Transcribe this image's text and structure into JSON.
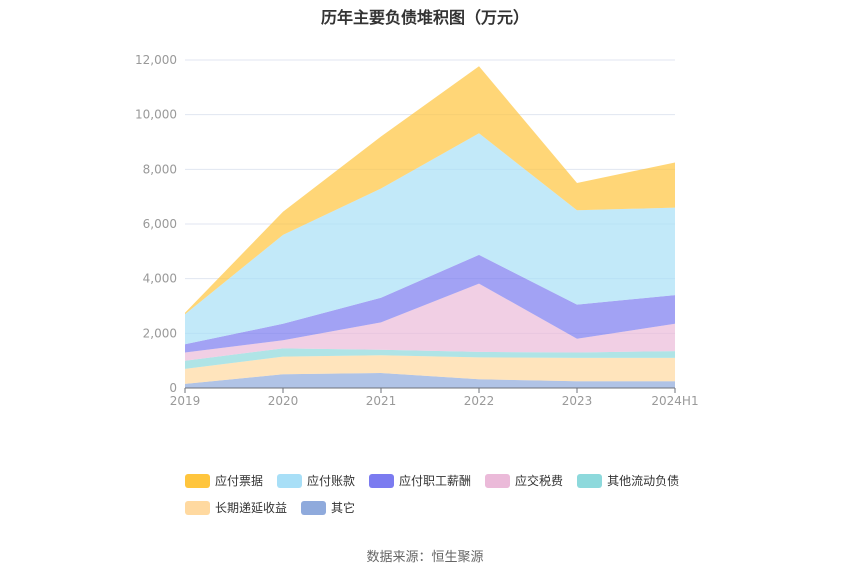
{
  "chart_data": {
    "type": "area",
    "stacked": true,
    "title": "历年主要负债堆积图（万元）",
    "categories": [
      "2019",
      "2020",
      "2021",
      "2022",
      "2023",
      "2024H1"
    ],
    "ylim": [
      0,
      12000
    ],
    "yticks": [
      "0",
      "2,000",
      "4,000",
      "6,000",
      "8,000",
      "10,000",
      "12,000"
    ],
    "ytick_values": [
      0,
      2000,
      4000,
      6000,
      8000,
      10000,
      12000
    ],
    "grid": true,
    "legend_position": "bottom",
    "series": [
      {
        "name": "其它",
        "color": "#8FAADC",
        "values": [
          150,
          500,
          550,
          320,
          250,
          250
        ]
      },
      {
        "name": "长期递延收益",
        "color": "#FFD9A0",
        "values": [
          550,
          650,
          650,
          800,
          850,
          850
        ]
      },
      {
        "name": "其他流动负债",
        "color": "#8DD9DC",
        "values": [
          300,
          300,
          200,
          200,
          200,
          250
        ]
      },
      {
        "name": "应交税费",
        "color": "#EBBAD9",
        "values": [
          300,
          300,
          1000,
          2500,
          500,
          1000
        ]
      },
      {
        "name": "应付职工薪酬",
        "color": "#7B7BF0",
        "values": [
          300,
          600,
          900,
          1050,
          1250,
          1050
        ]
      },
      {
        "name": "应付账款",
        "color": "#A8DFF7",
        "values": [
          1100,
          3250,
          4000,
          4450,
          3450,
          3200
        ]
      },
      {
        "name": "应付票据",
        "color": "#FFC53D",
        "values": [
          50,
          850,
          1900,
          2450,
          1000,
          1650
        ]
      }
    ]
  },
  "legend_order": [
    6,
    5,
    4,
    3,
    2,
    1,
    0
  ],
  "source": "数据来源：恒生聚源"
}
